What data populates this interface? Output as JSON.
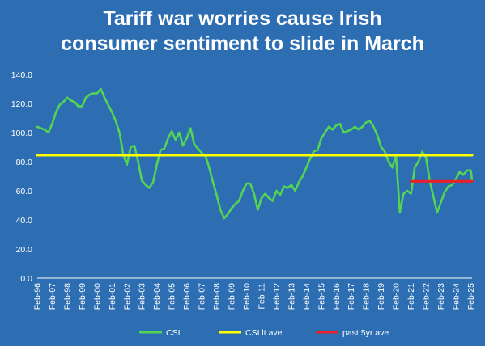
{
  "chart_data": {
    "type": "line",
    "title_lines": [
      "Tariff war worries cause Irish",
      "consumer sentiment to slide in March"
    ],
    "xlabel": "",
    "ylabel": "",
    "ylim": [
      0,
      140
    ],
    "yticks": [
      "0.0",
      "20.0",
      "40.0",
      "60.0",
      "80.0",
      "100.0",
      "120.0",
      "140.0"
    ],
    "xlim": [
      "1996-02",
      "2025-03"
    ],
    "xticks": [
      "Feb-96",
      "Feb-97",
      "Feb-98",
      "Feb-99",
      "Feb-00",
      "Feb-01",
      "Feb-02",
      "Feb-03",
      "Feb-04",
      "Feb-05",
      "Feb-06",
      "Feb-07",
      "Feb-08",
      "Feb-09",
      "Feb-10",
      "Feb-11",
      "Feb-12",
      "Feb-13",
      "Feb-14",
      "Feb-15",
      "Feb-16",
      "Feb-17",
      "Feb-18",
      "Feb-19",
      "Feb-20",
      "Feb-21",
      "Feb-22",
      "Feb-23",
      "Feb-24",
      "Feb-25"
    ],
    "grid": false,
    "legend": "bottom",
    "colors": {
      "csi": "#54d454",
      "lt_ave": "#ffff00",
      "past5": "#e8202a",
      "background": "#2d6db2",
      "axis": "#ffffff"
    },
    "series": [
      {
        "name": "CSI",
        "points": [
          [
            "1996-02",
            104
          ],
          [
            "1996-05",
            103
          ],
          [
            "1996-08",
            102
          ],
          [
            "1996-11",
            100
          ],
          [
            "1997-02",
            106
          ],
          [
            "1997-05",
            114
          ],
          [
            "1997-08",
            119
          ],
          [
            "1997-11",
            121
          ],
          [
            "1998-02",
            124
          ],
          [
            "1998-05",
            122
          ],
          [
            "1998-08",
            121
          ],
          [
            "1998-11",
            118
          ],
          [
            "1999-02",
            118
          ],
          [
            "1999-05",
            124
          ],
          [
            "1999-08",
            126
          ],
          [
            "1999-11",
            127
          ],
          [
            "2000-02",
            127
          ],
          [
            "2000-05",
            130
          ],
          [
            "2000-08",
            124
          ],
          [
            "2000-11",
            119
          ],
          [
            "2001-02",
            114
          ],
          [
            "2001-05",
            108
          ],
          [
            "2001-08",
            100
          ],
          [
            "2001-11",
            85
          ],
          [
            "2002-02",
            78
          ],
          [
            "2002-05",
            90
          ],
          [
            "2002-08",
            91
          ],
          [
            "2002-11",
            80
          ],
          [
            "2003-02",
            67
          ],
          [
            "2003-05",
            64
          ],
          [
            "2003-08",
            62
          ],
          [
            "2003-11",
            66
          ],
          [
            "2004-02",
            78
          ],
          [
            "2004-05",
            88
          ],
          [
            "2004-08",
            89
          ],
          [
            "2004-11",
            96
          ],
          [
            "2005-02",
            101
          ],
          [
            "2005-05",
            95
          ],
          [
            "2005-08",
            100
          ],
          [
            "2005-11",
            91
          ],
          [
            "2006-02",
            96
          ],
          [
            "2006-05",
            103
          ],
          [
            "2006-08",
            92
          ],
          [
            "2006-11",
            89
          ],
          [
            "2007-02",
            86
          ],
          [
            "2007-05",
            84
          ],
          [
            "2007-08",
            76
          ],
          [
            "2007-11",
            66
          ],
          [
            "2008-02",
            57
          ],
          [
            "2008-05",
            47
          ],
          [
            "2008-08",
            41
          ],
          [
            "2008-11",
            44
          ],
          [
            "2009-02",
            48
          ],
          [
            "2009-05",
            51
          ],
          [
            "2009-08",
            53
          ],
          [
            "2009-11",
            60
          ],
          [
            "2010-02",
            65
          ],
          [
            "2010-05",
            65
          ],
          [
            "2010-08",
            58
          ],
          [
            "2010-11",
            47
          ],
          [
            "2011-02",
            55
          ],
          [
            "2011-05",
            58
          ],
          [
            "2011-08",
            55
          ],
          [
            "2011-11",
            53
          ],
          [
            "2012-02",
            60
          ],
          [
            "2012-05",
            57
          ],
          [
            "2012-08",
            63
          ],
          [
            "2012-11",
            62
          ],
          [
            "2013-02",
            64
          ],
          [
            "2013-05",
            60
          ],
          [
            "2013-08",
            66
          ],
          [
            "2013-11",
            70
          ],
          [
            "2014-02",
            76
          ],
          [
            "2014-05",
            82
          ],
          [
            "2014-08",
            87
          ],
          [
            "2014-11",
            88
          ],
          [
            "2015-02",
            96
          ],
          [
            "2015-05",
            100
          ],
          [
            "2015-08",
            104
          ],
          [
            "2015-11",
            102
          ],
          [
            "2016-02",
            105
          ],
          [
            "2016-05",
            106
          ],
          [
            "2016-08",
            100
          ],
          [
            "2016-11",
            101
          ],
          [
            "2017-02",
            102
          ],
          [
            "2017-05",
            104
          ],
          [
            "2017-08",
            102
          ],
          [
            "2017-11",
            104
          ],
          [
            "2018-02",
            107
          ],
          [
            "2018-05",
            108
          ],
          [
            "2018-08",
            104
          ],
          [
            "2018-11",
            98
          ],
          [
            "2019-02",
            90
          ],
          [
            "2019-05",
            87
          ],
          [
            "2019-08",
            80
          ],
          [
            "2019-11",
            76
          ],
          [
            "2020-02",
            84
          ],
          [
            "2020-05",
            45
          ],
          [
            "2020-08",
            58
          ],
          [
            "2020-11",
            60
          ],
          [
            "2021-02",
            58
          ],
          [
            "2021-05",
            76
          ],
          [
            "2021-08",
            80
          ],
          [
            "2021-11",
            87
          ],
          [
            "2022-02",
            83
          ],
          [
            "2022-05",
            67
          ],
          [
            "2022-08",
            56
          ],
          [
            "2022-11",
            45
          ],
          [
            "2023-02",
            52
          ],
          [
            "2023-05",
            59
          ],
          [
            "2023-08",
            63
          ],
          [
            "2023-11",
            64
          ],
          [
            "2024-02",
            68
          ],
          [
            "2024-05",
            73
          ],
          [
            "2024-08",
            71
          ],
          [
            "2024-11",
            74
          ],
          [
            "2025-02",
            74
          ],
          [
            "2025-03",
            67
          ]
        ]
      },
      {
        "name": "CSI lt ave",
        "points": [
          [
            "1996-02",
            84.5
          ],
          [
            "2025-03",
            84.5
          ]
        ]
      },
      {
        "name": "past 5yr ave",
        "points": [
          [
            "2021-02",
            66.5
          ],
          [
            "2025-03",
            66.5
          ]
        ]
      }
    ]
  }
}
